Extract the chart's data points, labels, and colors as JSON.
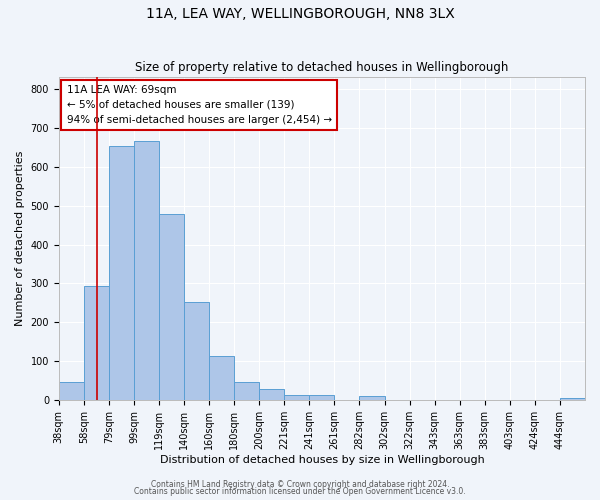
{
  "title": "11A, LEA WAY, WELLINGBOROUGH, NN8 3LX",
  "subtitle": "Size of property relative to detached houses in Wellingborough",
  "xlabel": "Distribution of detached houses by size in Wellingborough",
  "ylabel": "Number of detached properties",
  "bin_labels": [
    "38sqm",
    "58sqm",
    "79sqm",
    "99sqm",
    "119sqm",
    "140sqm",
    "160sqm",
    "180sqm",
    "200sqm",
    "221sqm",
    "241sqm",
    "261sqm",
    "282sqm",
    "302sqm",
    "322sqm",
    "343sqm",
    "363sqm",
    "383sqm",
    "403sqm",
    "424sqm",
    "444sqm"
  ],
  "bar_heights": [
    48,
    293,
    652,
    665,
    478,
    253,
    113,
    48,
    28,
    14,
    14,
    0,
    12,
    0,
    0,
    0,
    0,
    0,
    0,
    0,
    5
  ],
  "bar_color": "#aec6e8",
  "bar_edge_color": "#5a9fd4",
  "vline_label": "11A LEA WAY: 69sqm",
  "annotation_line1": "← 5% of detached houses are smaller (139)",
  "annotation_line2": "94% of semi-detached houses are larger (2,454) →",
  "annotation_box_color": "#ffffff",
  "annotation_box_edge_color": "#cc0000",
  "ylim": [
    0,
    830
  ],
  "footer1": "Contains HM Land Registry data © Crown copyright and database right 2024.",
  "footer2": "Contains public sector information licensed under the Open Government Licence v3.0.",
  "bg_color": "#f0f4fa",
  "grid_color": "#ffffff",
  "title_fontsize": 10,
  "subtitle_fontsize": 8.5,
  "axis_label_fontsize": 8,
  "tick_fontsize": 7,
  "bin_boundaries": [
    38,
    58,
    79,
    99,
    119,
    140,
    160,
    180,
    200,
    221,
    241,
    261,
    282,
    302,
    322,
    343,
    363,
    383,
    403,
    424,
    444
  ],
  "vline_val": 69
}
